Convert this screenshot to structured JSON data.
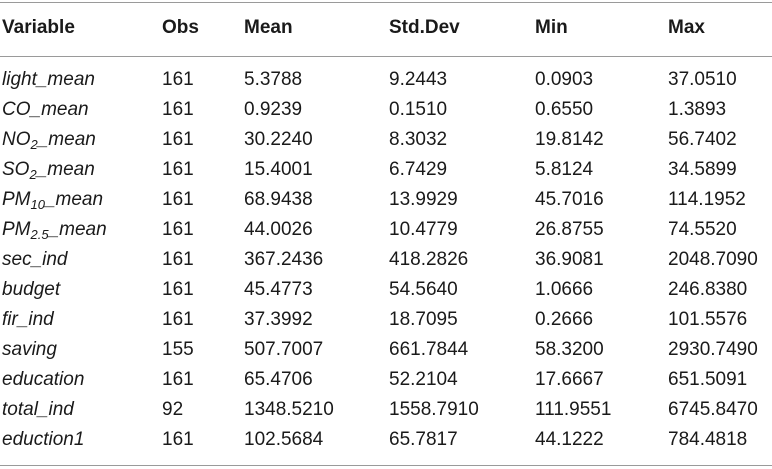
{
  "table": {
    "header": [
      "Variable",
      "Obs",
      "Mean",
      "Std.Dev",
      "Min",
      "Max"
    ],
    "rows": [
      [
        "light_mean",
        "161",
        "5.3788",
        "9.2443",
        "0.0903",
        "37.0510"
      ],
      [
        "CO_mean",
        "161",
        "0.9239",
        "0.1510",
        "0.6550",
        "1.3893"
      ],
      [
        [
          "NO",
          "2",
          "_mean"
        ],
        "161",
        "30.2240",
        "8.3032",
        "19.8142",
        "56.7402"
      ],
      [
        [
          "SO",
          "2",
          "_mean"
        ],
        "161",
        "15.4001",
        "6.7429",
        "5.8124",
        "34.5899"
      ],
      [
        [
          "PM",
          "10",
          "_mean"
        ],
        "161",
        "68.9438",
        "13.9929",
        "45.7016",
        "114.1952"
      ],
      [
        [
          "PM",
          "2.5",
          "_mean"
        ],
        "161",
        "44.0026",
        "10.4779",
        "26.8755",
        "74.5520"
      ],
      [
        "sec_ind",
        "161",
        "367.2436",
        "418.2826",
        "36.9081",
        "2048.7090"
      ],
      [
        "budget",
        "161",
        "45.4773",
        "54.5640",
        "1.0666",
        "246.8380"
      ],
      [
        "fir_ind",
        "161",
        "37.3992",
        "18.7095",
        "0.2666",
        "101.5576"
      ],
      [
        "saving",
        "155",
        "507.7007",
        "661.7844",
        "58.3200",
        "2930.7490"
      ],
      [
        "education",
        "161",
        "65.4706",
        "52.2104",
        "17.6667",
        "651.5091"
      ],
      [
        "total_ind",
        "92",
        "1348.5210",
        "1558.7910",
        "111.9551",
        "6745.8470"
      ],
      [
        "eduction1",
        "161",
        "102.5684",
        "65.7817",
        "44.1222",
        "784.4818"
      ]
    ]
  }
}
